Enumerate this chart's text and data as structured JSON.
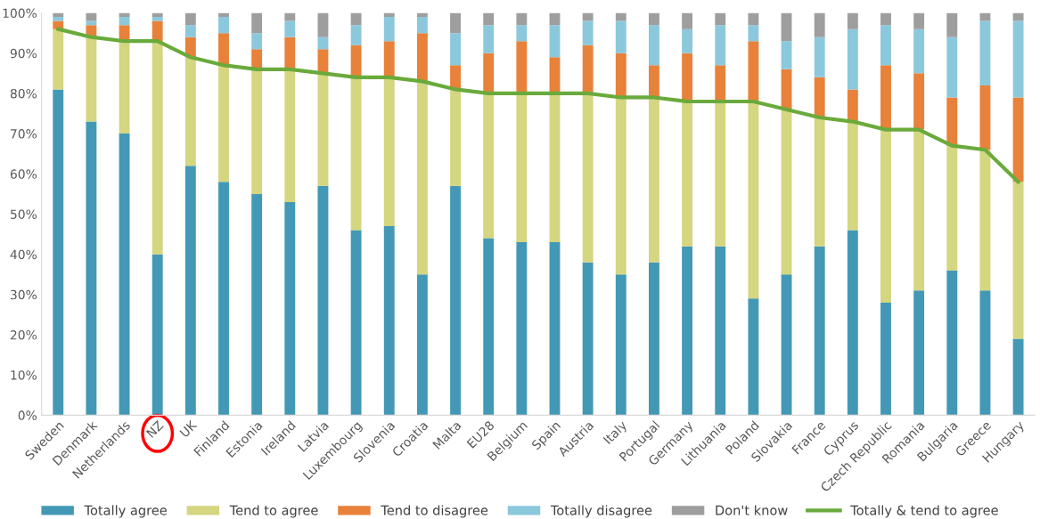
{
  "chart_data": {
    "type": "bar",
    "stacked": true,
    "categories": [
      "Sweden",
      "Denmark",
      "Netherlands",
      "NZ",
      "UK",
      "Finland",
      "Estonia",
      "Ireland",
      "Latvia",
      "Luxembourg",
      "Slovenia",
      "Croatia",
      "Malta",
      "EU28",
      "Belgium",
      "Spain",
      "Austria",
      "Italy",
      "Portugal",
      "Germany",
      "Lithuania",
      "Poland",
      "Slovakia",
      "France",
      "Cyprus",
      "Czech Republic",
      "Romania",
      "Bulgaria",
      "Greece",
      "Hungary"
    ],
    "series": [
      {
        "name": "Totally agree",
        "color": "#4399b5",
        "values": [
          81,
          73,
          70,
          40,
          62,
          58,
          55,
          53,
          57,
          46,
          47,
          35,
          57,
          44,
          43,
          43,
          38,
          35,
          38,
          42,
          42,
          29,
          35,
          42,
          46,
          28,
          31,
          36,
          31,
          19
        ]
      },
      {
        "name": "Tend to agree",
        "color": "#d4d680",
        "values": [
          15,
          21,
          23,
          53,
          27,
          29,
          31,
          33,
          28,
          38,
          37,
          48,
          24,
          36,
          37,
          37,
          42,
          44,
          41,
          36,
          36,
          49,
          41,
          32,
          27,
          43,
          40,
          31,
          35,
          39
        ]
      },
      {
        "name": "Tend to disagree",
        "color": "#e8813a",
        "values": [
          2,
          3,
          4,
          5,
          5,
          8,
          5,
          8,
          6,
          8,
          9,
          12,
          6,
          10,
          13,
          9,
          12,
          11,
          8,
          12,
          9,
          15,
          10,
          10,
          8,
          16,
          14,
          12,
          16,
          21
        ]
      },
      {
        "name": "Totally disagree",
        "color": "#8cc8dc",
        "values": [
          1,
          1,
          2,
          1,
          3,
          4,
          4,
          4,
          3,
          5,
          6,
          4,
          8,
          7,
          4,
          8,
          6,
          8,
          10,
          6,
          10,
          4,
          7,
          10,
          15,
          10,
          11,
          15,
          16,
          19
        ]
      },
      {
        "name": "Don't know",
        "color": "#9e9e9e",
        "values": [
          1,
          2,
          1,
          1,
          3,
          1,
          5,
          2,
          6,
          3,
          1,
          1,
          5,
          3,
          3,
          3,
          2,
          2,
          3,
          4,
          3,
          3,
          7,
          6,
          4,
          3,
          4,
          6,
          2,
          2
        ]
      },
      {
        "name": "Totally & tend to agree",
        "type": "line",
        "color": "#6aaa3c",
        "values": [
          96,
          94,
          93,
          93,
          89,
          87,
          86,
          86,
          85,
          84,
          84,
          83,
          81,
          80,
          80,
          80,
          80,
          79,
          79,
          78,
          78,
          78,
          76,
          74,
          73,
          71,
          71,
          67,
          66,
          58
        ]
      }
    ],
    "ylim": [
      0,
      100
    ],
    "yticks": [
      {
        "value": 0,
        "label": "0%"
      },
      {
        "value": 10,
        "label": "10%"
      },
      {
        "value": 20,
        "label": "20%"
      },
      {
        "value": 30,
        "label": "30%"
      },
      {
        "value": 40,
        "label": "40%"
      },
      {
        "value": 50,
        "label": "50%"
      },
      {
        "value": 60,
        "label": "60%"
      },
      {
        "value": 70,
        "label": "70%"
      },
      {
        "value": 80,
        "label": "80%"
      },
      {
        "value": 90,
        "label": "90%"
      },
      {
        "value": 100,
        "label": "100%"
      }
    ],
    "legend": "bottom"
  }
}
